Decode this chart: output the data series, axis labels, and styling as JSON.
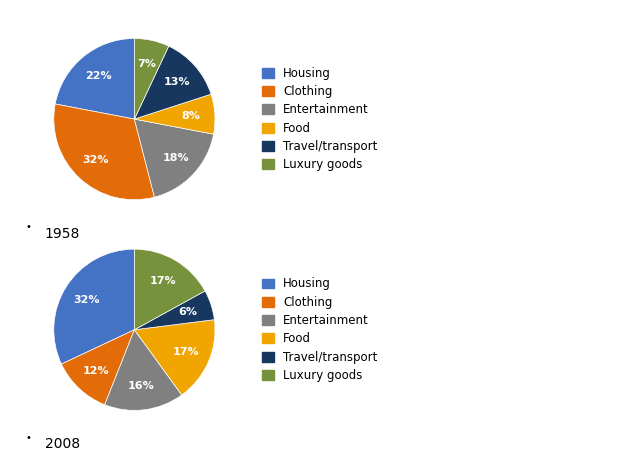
{
  "chart1_year": "1958",
  "chart2_year": "2008",
  "labels": [
    "Housing",
    "Clothing",
    "Entertainment",
    "Food",
    "Travel/transport",
    "Luxury goods"
  ],
  "pie_colors": [
    "#4472C4",
    "#E36C09",
    "#808080",
    "#F0A500",
    "#17375E",
    "#76923C"
  ],
  "values_1958": [
    22,
    32,
    18,
    8,
    13,
    7
  ],
  "values_2008": [
    32,
    12,
    16,
    17,
    6,
    17
  ],
  "background_color": "#FFFFFF",
  "label_fontsize": 8,
  "legend_fontsize": 8.5,
  "year_fontsize": 10,
  "startangle": 90
}
